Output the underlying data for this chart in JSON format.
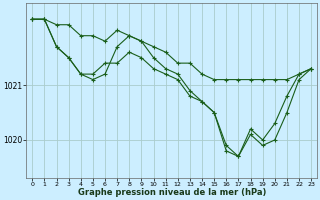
{
  "bg_color": "#cceeff",
  "grid_color": "#aacccc",
  "line_color": "#1a5e1a",
  "marker": "+",
  "markersize": 3,
  "linewidth": 0.8,
  "xlim": [
    -0.5,
    23.5
  ],
  "ylim": [
    1019.3,
    1022.5
  ],
  "xticks": [
    0,
    1,
    2,
    3,
    4,
    5,
    6,
    7,
    8,
    9,
    10,
    11,
    12,
    13,
    14,
    15,
    16,
    17,
    18,
    19,
    20,
    21,
    22,
    23
  ],
  "yticks": [
    1020,
    1021
  ],
  "xlabel": "Graphe pression niveau de la mer (hPa)",
  "series1_x": [
    0,
    1,
    2,
    3,
    4,
    5,
    6,
    7,
    8,
    9,
    10,
    11,
    12,
    13,
    14,
    15,
    16,
    17,
    18,
    19,
    20,
    21,
    22,
    23
  ],
  "series1_y": [
    1022.2,
    1022.2,
    1022.1,
    1022.1,
    1021.9,
    1021.9,
    1021.8,
    1022.0,
    1021.9,
    1021.8,
    1021.7,
    1021.6,
    1021.4,
    1021.4,
    1021.2,
    1021.1,
    1021.1,
    1021.1,
    1021.1,
    1021.1,
    1021.1,
    1021.1,
    1021.2,
    1021.3
  ],
  "series2_x": [
    0,
    1,
    2,
    3,
    4,
    5,
    6,
    7,
    8,
    9,
    10,
    11,
    12,
    13,
    14,
    15,
    16,
    17,
    18,
    19,
    20,
    21,
    22,
    23
  ],
  "series2_y": [
    1022.2,
    1022.2,
    1021.7,
    1021.5,
    1021.2,
    1021.2,
    1021.4,
    1021.4,
    1021.6,
    1021.5,
    1021.3,
    1021.2,
    1021.1,
    1020.8,
    1020.7,
    1020.5,
    1019.8,
    1019.7,
    1020.1,
    1019.9,
    1020.0,
    1020.5,
    1021.1,
    1021.3
  ],
  "series3_x": [
    0,
    1,
    2,
    3,
    4,
    5,
    6,
    7,
    8,
    9,
    10,
    11,
    12,
    13,
    14,
    15,
    16,
    17,
    18,
    19,
    20,
    21,
    22,
    23
  ],
  "series3_y": [
    1022.2,
    1022.2,
    1021.7,
    1021.5,
    1021.2,
    1021.1,
    1021.2,
    1021.7,
    1021.9,
    1021.8,
    1021.5,
    1021.3,
    1021.2,
    1020.9,
    1020.7,
    1020.5,
    1019.9,
    1019.7,
    1020.2,
    1020.0,
    1020.3,
    1020.8,
    1021.2,
    1021.3
  ]
}
